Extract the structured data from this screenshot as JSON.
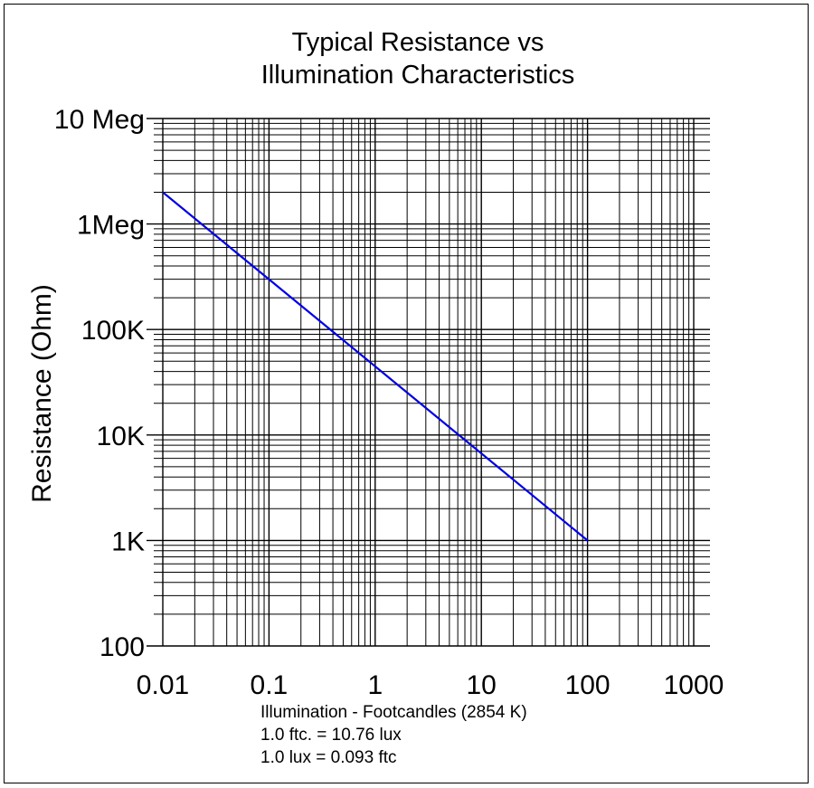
{
  "chart_data": {
    "type": "line",
    "title": [
      "Typical Resistance vs",
      "Illumination Characteristics"
    ],
    "ylabel": "Resistance (Ohm)",
    "xlabel": "Illumination - Footcandles (2854 K)",
    "notes": [
      "1.0 ftc. = 10.76 lux",
      "1.0 lux = 0.093 ftc"
    ],
    "x_scale": "log",
    "y_scale": "log",
    "xlim": [
      0.01,
      1000
    ],
    "ylim": [
      100,
      10000000
    ],
    "x_ticks": [
      {
        "value": 0.01,
        "label": "0.01"
      },
      {
        "value": 0.1,
        "label": "0.1"
      },
      {
        "value": 1,
        "label": "1"
      },
      {
        "value": 10,
        "label": "10"
      },
      {
        "value": 100,
        "label": "100"
      },
      {
        "value": 1000,
        "label": "1000"
      }
    ],
    "y_ticks": [
      {
        "value": 10000000,
        "label": "10 Meg"
      },
      {
        "value": 1000000,
        "label": "1Meg"
      },
      {
        "value": 100000,
        "label": "100K"
      },
      {
        "value": 10000,
        "label": "10K"
      },
      {
        "value": 1000,
        "label": "1K"
      },
      {
        "value": 100,
        "label": "100"
      }
    ],
    "grid": true,
    "series": [
      {
        "color": "#0000dd",
        "points": [
          {
            "x": 0.01,
            "y": 2000000
          },
          {
            "x": 100,
            "y": 1000
          }
        ]
      }
    ]
  }
}
